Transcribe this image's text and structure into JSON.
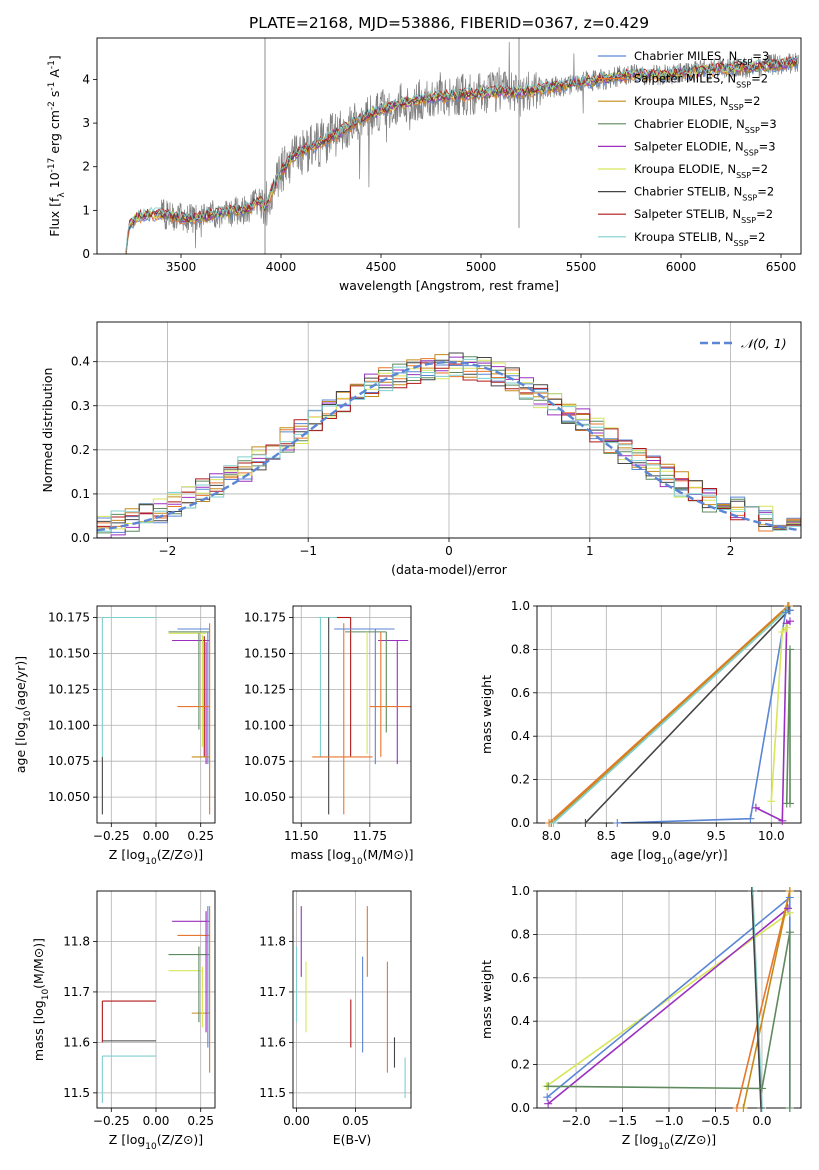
{
  "figure": {
    "title": "PLATE=2168, MJD=53886, FIBERID=0367, z=0.429"
  },
  "colors": [
    "#5b86d6",
    "#e8762c",
    "#c58a1a",
    "#5e8a5e",
    "#9b30c0",
    "#d8e65a",
    "#454545",
    "#b01818",
    "#7fcfcf"
  ],
  "chart_data": [
    {
      "id": "spectrum",
      "type": "line",
      "xlabel": "wavelength [Angstrom, rest frame]",
      "ylabel": "Flux [f_λ 10^-17 erg cm^-2 s^-1 A^-1]",
      "xlim": [
        3080,
        6600
      ],
      "ylim": [
        0,
        4.95
      ],
      "xticks": [
        3500,
        4000,
        4500,
        5000,
        5500,
        6000,
        6500
      ],
      "yticks": [
        0,
        1,
        2,
        3,
        4
      ],
      "grid": false,
      "legend_position": "top-right",
      "data_color": "#808080",
      "data_range": [
        3225,
        6590
      ],
      "continuum": {
        "x": [
          3225,
          3240,
          3280,
          3350,
          3420,
          3480,
          3520,
          3600,
          3680,
          3760,
          3840,
          3890,
          3920,
          3960,
          4000,
          4050,
          4100,
          4200,
          4300,
          4400,
          4500,
          4600,
          4700,
          4800,
          4900,
          5000,
          5100,
          5200,
          5300,
          5400,
          5500,
          5600,
          5700,
          5800,
          5900,
          6000,
          6100,
          6200,
          6300,
          6400,
          6500,
          6590
        ],
        "y": [
          0.05,
          0.65,
          0.85,
          0.92,
          0.9,
          0.85,
          0.8,
          0.85,
          0.92,
          0.98,
          1.05,
          1.25,
          1.05,
          1.5,
          1.85,
          2.2,
          2.35,
          2.55,
          2.8,
          3.1,
          3.3,
          3.45,
          3.55,
          3.6,
          3.65,
          3.68,
          3.72,
          3.7,
          3.78,
          3.85,
          3.95,
          4.0,
          4.08,
          4.12,
          4.1,
          4.15,
          4.2,
          4.25,
          4.25,
          4.3,
          4.35,
          4.4
        ]
      },
      "series": [
        {
          "name": "Chabrier MILES, N_SSP=3"
        },
        {
          "name": "Salpeter MILES, N_SSP=2"
        },
        {
          "name": "Kroupa MILES, N_SSP=2"
        },
        {
          "name": "Chabrier ELODIE, N_SSP=3"
        },
        {
          "name": "Salpeter ELODIE, N_SSP=3"
        },
        {
          "name": "Kroupa ELODIE, N_SSP=2"
        },
        {
          "name": "Chabrier STELIB, N_SSP=2"
        },
        {
          "name": "Salpeter STELIB, N_SSP=2"
        },
        {
          "name": "Kroupa STELIB, N_SSP=2"
        }
      ]
    },
    {
      "id": "residuals",
      "type": "line",
      "xlabel": "(data-model)/error",
      "ylabel": "Normed distribution",
      "xlim": [
        -2.5,
        2.5
      ],
      "ylim": [
        0,
        0.49
      ],
      "xticks": [
        -2,
        -1,
        0,
        1,
        2
      ],
      "yticks": [
        0.0,
        0.1,
        0.2,
        0.3,
        0.4
      ],
      "grid": true,
      "legend_position": "top-right",
      "normal_curve_label": "𝒩(0, 1)",
      "bin_width": 0.1
    },
    {
      "id": "age_vs_Z",
      "type": "scatter",
      "xlabel": "Z [log10(Z/Z⊙)]",
      "ylabel": "age  [log10(age/yr)]",
      "xlim": [
        -0.33,
        0.33
      ],
      "ylim": [
        10.032,
        10.183
      ],
      "xticks": [
        -0.25,
        0.0,
        0.25
      ],
      "yticks": [
        10.05,
        10.075,
        10.1,
        10.125,
        10.15,
        10.175
      ],
      "grid": true,
      "segments": [
        {
          "c": 8,
          "x": [
            -0.3,
            0.0
          ],
          "y": [
            10.175,
            10.175
          ]
        },
        {
          "c": 8,
          "x": [
            -0.3,
            -0.3
          ],
          "y": [
            10.078,
            10.175
          ]
        },
        {
          "c": 6,
          "x": [
            -0.3,
            -0.3
          ],
          "y": [
            10.038,
            10.078
          ]
        },
        {
          "c": 0,
          "x": [
            0.12,
            0.3
          ],
          "y": [
            10.167,
            10.167
          ]
        },
        {
          "c": 3,
          "x": [
            0.07,
            0.3
          ],
          "y": [
            10.165,
            10.165
          ]
        },
        {
          "c": 4,
          "x": [
            0.09,
            0.3
          ],
          "y": [
            10.159,
            10.159
          ]
        },
        {
          "c": 5,
          "x": [
            0.07,
            0.28
          ],
          "y": [
            10.164,
            10.164
          ]
        },
        {
          "c": 3,
          "x": [
            0.24,
            0.24
          ],
          "y": [
            10.097,
            10.164
          ]
        },
        {
          "c": 5,
          "x": [
            0.26,
            0.26
          ],
          "y": [
            10.085,
            10.163
          ]
        },
        {
          "c": 0,
          "x": [
            0.29,
            0.29
          ],
          "y": [
            10.073,
            10.165
          ]
        },
        {
          "c": 4,
          "x": [
            0.28,
            0.28
          ],
          "y": [
            10.073,
            10.158
          ]
        },
        {
          "c": 7,
          "x": [
            0.27,
            0.27
          ],
          "y": [
            10.078,
            10.162
          ]
        },
        {
          "c": 2,
          "x": [
            0.2,
            0.3
          ],
          "y": [
            10.078,
            10.078
          ]
        },
        {
          "c": 1,
          "x": [
            0.3,
            0.3
          ],
          "y": [
            10.038,
            10.171
          ]
        },
        {
          "c": 1,
          "x": [
            0.12,
            0.3
          ],
          "y": [
            10.113,
            10.113
          ]
        }
      ]
    },
    {
      "id": "age_vs_mass",
      "type": "scatter",
      "xlabel": "mass [log10(M/M⊙)]",
      "ylabel": "",
      "xlim": [
        11.47,
        11.9
      ],
      "ylim": [
        10.032,
        10.183
      ],
      "xticks": [
        11.5,
        11.75
      ],
      "yticks": [
        10.05,
        10.075,
        10.1,
        10.125,
        10.15,
        10.175
      ],
      "grid": true,
      "segments": [
        {
          "c": 8,
          "x": [
            11.56,
            11.69
          ],
          "y": [
            10.175,
            10.175
          ]
        },
        {
          "c": 7,
          "x": [
            11.63,
            11.68
          ],
          "y": [
            10.175,
            10.175
          ]
        },
        {
          "c": 8,
          "x": [
            11.57,
            11.57
          ],
          "y": [
            10.078,
            10.175
          ]
        },
        {
          "c": 6,
          "x": [
            11.6,
            11.6
          ],
          "y": [
            10.038,
            10.175
          ]
        },
        {
          "c": 7,
          "x": [
            11.68,
            11.68
          ],
          "y": [
            10.078,
            10.175
          ]
        },
        {
          "c": 1,
          "x": [
            11.54,
            11.76
          ],
          "y": [
            10.078,
            10.078
          ]
        },
        {
          "c": 1,
          "x": [
            11.655,
            11.655
          ],
          "y": [
            10.038,
            10.171
          ]
        },
        {
          "c": 0,
          "x": [
            11.62,
            11.84
          ],
          "y": [
            10.167,
            10.167
          ]
        },
        {
          "c": 3,
          "x": [
            11.66,
            11.81
          ],
          "y": [
            10.165,
            10.165
          ]
        },
        {
          "c": 4,
          "x": [
            11.78,
            11.89
          ],
          "y": [
            10.159,
            10.159
          ]
        },
        {
          "c": 5,
          "x": [
            11.74,
            11.74
          ],
          "y": [
            10.08,
            10.165
          ]
        },
        {
          "c": 0,
          "x": [
            11.77,
            11.77
          ],
          "y": [
            10.073,
            10.167
          ]
        },
        {
          "c": 4,
          "x": [
            11.85,
            11.85
          ],
          "y": [
            10.073,
            10.159
          ]
        },
        {
          "c": 3,
          "x": [
            11.81,
            11.81
          ],
          "y": [
            10.095,
            10.165
          ]
        },
        {
          "c": 1,
          "x": [
            11.75,
            11.9
          ],
          "y": [
            10.113,
            10.113
          ]
        },
        {
          "c": 1,
          "x": [
            11.79,
            11.79
          ],
          "y": [
            10.078,
            10.165
          ]
        }
      ]
    },
    {
      "id": "mw_vs_age",
      "type": "line",
      "xlabel": "age  [log10(age/yr)]",
      "ylabel": "mass weight",
      "xlim": [
        7.87,
        10.27
      ],
      "ylim": [
        0,
        1
      ],
      "xticks": [
        8.0,
        8.5,
        9.0,
        9.5,
        10.0
      ],
      "yticks": [
        0.0,
        0.2,
        0.4,
        0.6,
        0.8,
        1.0
      ],
      "grid": true,
      "lines": [
        {
          "c": 1,
          "x": [
            7.98,
            10.15
          ],
          "y": [
            0.0,
            1.0
          ]
        },
        {
          "c": 2,
          "x": [
            8.0,
            10.16
          ],
          "y": [
            0.0,
            1.0
          ]
        },
        {
          "c": 8,
          "x": [
            8.02,
            10.14
          ],
          "y": [
            0.0,
            0.98
          ]
        },
        {
          "c": 6,
          "x": [
            8.31,
            10.16
          ],
          "y": [
            0.0,
            0.98
          ]
        },
        {
          "c": 0,
          "x": [
            8.6,
            9.81,
            10.13,
            10.17
          ],
          "y": [
            0.0,
            0.02,
            0.97,
            0.98
          ]
        },
        {
          "c": 4,
          "x": [
            9.86,
            10.1,
            10.14,
            10.17
          ],
          "y": [
            0.07,
            0.01,
            0.92,
            0.93
          ]
        },
        {
          "c": 5,
          "x": [
            10.0,
            10.1,
            10.14
          ],
          "y": [
            0.1,
            0.88,
            0.9
          ]
        },
        {
          "c": 3,
          "x": [
            10.14,
            10.17,
            10.17
          ],
          "y": [
            0.09,
            0.8,
            0.09
          ]
        }
      ]
    },
    {
      "id": "mass_vs_Z",
      "type": "scatter",
      "xlabel": "Z [log10(Z/Z⊙)]",
      "ylabel": "mass [log10(M/M⊙)]",
      "xlim": [
        -0.33,
        0.33
      ],
      "ylim": [
        11.47,
        11.9
      ],
      "xticks": [
        -0.25,
        0.0,
        0.25
      ],
      "yticks": [
        11.5,
        11.6,
        11.7,
        11.8
      ],
      "grid": true,
      "segments": [
        {
          "c": 7,
          "x": [
            -0.3,
            0.0
          ],
          "y": [
            11.682,
            11.682
          ]
        },
        {
          "c": 7,
          "x": [
            -0.3,
            -0.3
          ],
          "y": [
            11.6,
            11.682
          ]
        },
        {
          "c": 6,
          "x": [
            -0.3,
            0.0
          ],
          "y": [
            11.603,
            11.603
          ]
        },
        {
          "c": 8,
          "x": [
            -0.3,
            0.0
          ],
          "y": [
            11.573,
            11.573
          ]
        },
        {
          "c": 8,
          "x": [
            -0.3,
            -0.3
          ],
          "y": [
            11.48,
            11.573
          ]
        },
        {
          "c": 4,
          "x": [
            0.09,
            0.3
          ],
          "y": [
            11.84,
            11.84
          ]
        },
        {
          "c": 1,
          "x": [
            0.12,
            0.3
          ],
          "y": [
            11.812,
            11.812
          ]
        },
        {
          "c": 3,
          "x": [
            0.07,
            0.3
          ],
          "y": [
            11.774,
            11.774
          ]
        },
        {
          "c": 5,
          "x": [
            0.07,
            0.26
          ],
          "y": [
            11.742,
            11.742
          ]
        },
        {
          "c": 2,
          "x": [
            0.2,
            0.3
          ],
          "y": [
            11.658,
            11.658
          ]
        },
        {
          "c": 0,
          "x": [
            0.29,
            0.29
          ],
          "y": [
            11.59,
            11.87
          ]
        },
        {
          "c": 4,
          "x": [
            0.28,
            0.28
          ],
          "y": [
            11.62,
            11.86
          ]
        },
        {
          "c": 3,
          "x": [
            0.24,
            0.24
          ],
          "y": [
            11.64,
            11.79
          ]
        },
        {
          "c": 5,
          "x": [
            0.26,
            0.26
          ],
          "y": [
            11.63,
            11.75
          ]
        },
        {
          "c": 1,
          "x": [
            0.3,
            0.3
          ],
          "y": [
            11.54,
            11.87
          ]
        }
      ]
    },
    {
      "id": "mass_vs_EBV",
      "type": "scatter",
      "xlabel": "E(B-V)",
      "ylabel": "",
      "xlim": [
        -0.003,
        0.097
      ],
      "ylim": [
        11.47,
        11.9
      ],
      "xticks": [
        0.0,
        0.05
      ],
      "yticks": [
        11.5,
        11.6,
        11.7,
        11.8
      ],
      "grid": true,
      "segments": [
        {
          "c": 8,
          "x": [
            0.0,
            0.0
          ],
          "y": [
            11.64,
            11.79
          ]
        },
        {
          "c": 4,
          "x": [
            0.004,
            0.004
          ],
          "y": [
            11.73,
            11.87
          ]
        },
        {
          "c": 5,
          "x": [
            0.008,
            0.008
          ],
          "y": [
            11.62,
            11.76
          ]
        },
        {
          "c": 7,
          "x": [
            0.046,
            0.046
          ],
          "y": [
            11.59,
            11.685
          ]
        },
        {
          "c": 0,
          "x": [
            0.056,
            0.056
          ],
          "y": [
            11.58,
            11.77
          ]
        },
        {
          "c": 1,
          "x": [
            0.06,
            0.06
          ],
          "y": [
            11.73,
            11.87
          ]
        },
        {
          "c": 1,
          "x": [
            0.077,
            0.077
          ],
          "y": [
            11.54,
            11.76
          ]
        },
        {
          "c": 6,
          "x": [
            0.083,
            0.083
          ],
          "y": [
            11.55,
            11.61
          ]
        },
        {
          "c": 8,
          "x": [
            0.092,
            0.092
          ],
          "y": [
            11.49,
            11.57
          ]
        }
      ]
    },
    {
      "id": "mw_vs_Z",
      "type": "line",
      "xlabel": "Z [log10(Z/Z⊙)]",
      "ylabel": "mass weight",
      "xlim": [
        -2.42,
        0.42
      ],
      "ylim": [
        0,
        1
      ],
      "xticks": [
        -2.0,
        -1.5,
        -1.0,
        -0.5,
        0.0
      ],
      "yticks": [
        0.0,
        0.2,
        0.4,
        0.6,
        0.8,
        1.0
      ],
      "grid": true,
      "lines": [
        {
          "c": 5,
          "x": [
            -2.32,
            0.3
          ],
          "y": [
            0.1,
            0.9
          ]
        },
        {
          "c": 0,
          "x": [
            -2.31,
            0.3,
            0.3
          ],
          "y": [
            0.05,
            0.97,
            0.0
          ]
        },
        {
          "c": 4,
          "x": [
            -2.3,
            0.28
          ],
          "y": [
            0.02,
            0.92
          ]
        },
        {
          "c": 3,
          "x": [
            -2.3,
            0.0,
            0.3,
            0.3
          ],
          "y": [
            0.1,
            0.09,
            0.81,
            0.0
          ]
        },
        {
          "c": 1,
          "x": [
            -0.27,
            0.3
          ],
          "y": [
            0.0,
            1.0
          ]
        },
        {
          "c": 2,
          "x": [
            -0.2,
            0.3
          ],
          "y": [
            0.0,
            1.0
          ]
        },
        {
          "c": 8,
          "x": [
            -0.1,
            0.0
          ],
          "y": [
            1.0,
            0.0
          ]
        },
        {
          "c": 6,
          "x": [
            -0.11,
            -0.01
          ],
          "y": [
            1.0,
            0.0
          ]
        }
      ]
    }
  ]
}
